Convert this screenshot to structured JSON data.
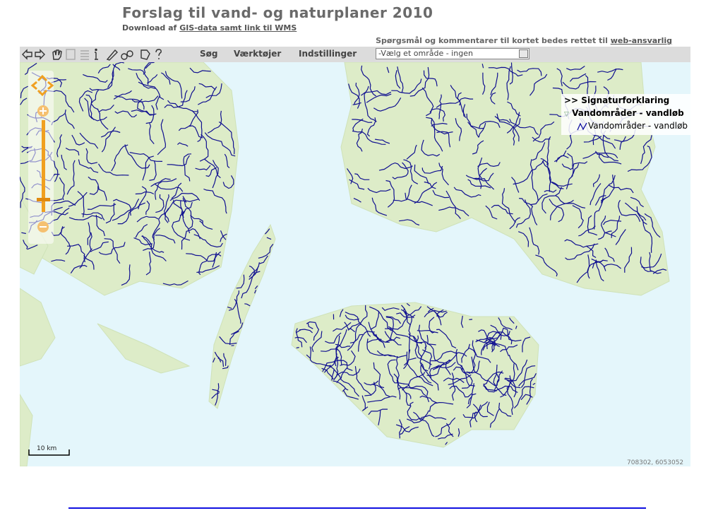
{
  "header": {
    "title": "Forslag til vand- og naturplaner 2010",
    "subtitle_prefix": "Download af",
    "subtitle_link": "GIS-data samt link til WMS"
  },
  "notice": {
    "text": "Spørgsmål og kommentarer til kortet bedes rettet til",
    "link": "web-ansvarlig"
  },
  "toolbar": {
    "menus": [
      "Søg",
      "Værktøjer",
      "Indstillinger"
    ],
    "area_select": "-Vælg et område - ingen"
  },
  "legend": {
    "toggle": ">>",
    "title": "Signaturforklaring",
    "group": "Vandområder - vandløb",
    "item": "Vandområder - vandløb"
  },
  "map": {
    "scale": "10 km",
    "coordinates": "708302, 6053052"
  }
}
